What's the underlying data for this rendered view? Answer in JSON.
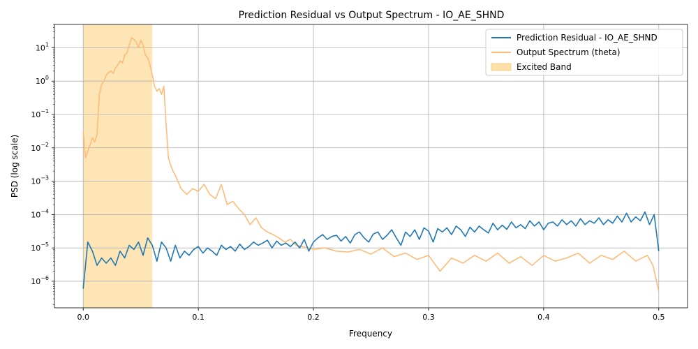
{
  "chart_data": {
    "type": "line",
    "title": "Prediction Residual vs Output Spectrum - IO_AE_SHND",
    "xlabel": "Frequency",
    "ylabel": "PSD (log scale)",
    "xlim": [
      -0.025,
      0.525
    ],
    "ylim": [
      1.6e-07,
      50
    ],
    "yscale": "log",
    "grid": true,
    "legend_position": "top-right",
    "x_ticks": [
      0.0,
      0.1,
      0.2,
      0.3,
      0.4,
      0.5
    ],
    "x_tick_labels": [
      "0.0",
      "0.1",
      "0.2",
      "0.3",
      "0.4",
      "0.5"
    ],
    "y_ticks": [
      1e-06,
      1e-05,
      0.0001,
      0.001,
      0.01,
      0.1,
      1,
      10
    ],
    "y_tick_bases": [
      "10",
      "10",
      "10",
      "10",
      "10",
      "10",
      "10",
      "10"
    ],
    "y_tick_exponents": [
      "−6",
      "−5",
      "−4",
      "−3",
      "−2",
      "−1",
      "0",
      "1"
    ],
    "band": {
      "name": "Excited Band",
      "x_start": 0.0,
      "x_end": 0.06,
      "color": "#fde0a8"
    },
    "series": [
      {
        "name": "Prediction Residual - IO_AE_SHND",
        "color": "#1f77b4",
        "x": [
          0.0,
          0.004,
          0.008,
          0.012,
          0.016,
          0.02,
          0.024,
          0.028,
          0.032,
          0.036,
          0.04,
          0.044,
          0.048,
          0.052,
          0.056,
          0.06,
          0.064,
          0.068,
          0.072,
          0.076,
          0.08,
          0.084,
          0.088,
          0.092,
          0.096,
          0.1,
          0.104,
          0.108,
          0.112,
          0.116,
          0.12,
          0.124,
          0.128,
          0.132,
          0.136,
          0.14,
          0.144,
          0.148,
          0.152,
          0.156,
          0.16,
          0.164,
          0.168,
          0.172,
          0.176,
          0.18,
          0.184,
          0.188,
          0.192,
          0.196,
          0.2,
          0.204,
          0.208,
          0.212,
          0.216,
          0.22,
          0.224,
          0.228,
          0.232,
          0.236,
          0.24,
          0.244,
          0.248,
          0.252,
          0.256,
          0.26,
          0.264,
          0.268,
          0.272,
          0.276,
          0.28,
          0.284,
          0.288,
          0.292,
          0.296,
          0.3,
          0.304,
          0.308,
          0.312,
          0.316,
          0.32,
          0.324,
          0.328,
          0.332,
          0.336,
          0.34,
          0.344,
          0.348,
          0.352,
          0.356,
          0.36,
          0.364,
          0.368,
          0.372,
          0.376,
          0.38,
          0.384,
          0.388,
          0.392,
          0.396,
          0.4,
          0.404,
          0.408,
          0.412,
          0.416,
          0.42,
          0.424,
          0.428,
          0.432,
          0.436,
          0.44,
          0.444,
          0.448,
          0.452,
          0.456,
          0.46,
          0.464,
          0.468,
          0.472,
          0.476,
          0.48,
          0.484,
          0.488,
          0.492,
          0.496,
          0.5
        ],
        "values": [
          6e-07,
          1.5e-05,
          8e-06,
          3e-06,
          5e-06,
          3.5e-06,
          5e-06,
          3e-06,
          8e-06,
          5e-06,
          1.2e-05,
          9e-06,
          1.5e-05,
          6e-06,
          2e-05,
          1.2e-05,
          4e-06,
          1.5e-05,
          1e-05,
          4e-06,
          1.2e-05,
          5e-06,
          8e-06,
          6e-06,
          9e-06,
          1.1e-05,
          7e-06,
          1e-05,
          8e-06,
          6e-06,
          1.2e-05,
          9e-06,
          1.1e-05,
          8e-06,
          1.3e-05,
          9e-06,
          1.1e-05,
          1.5e-05,
          1.2e-05,
          1.4e-05,
          1.7e-05,
          1e-05,
          1.6e-05,
          1.2e-05,
          1.4e-05,
          1.1e-05,
          1.5e-05,
          1e-05,
          1.8e-05,
          8e-06,
          1.5e-05,
          2e-05,
          2.5e-05,
          1.8e-05,
          2.2e-05,
          2.4e-05,
          1.6e-05,
          2.2e-05,
          1.4e-05,
          2.5e-05,
          3e-05,
          2e-05,
          1.5e-05,
          2.6e-05,
          3e-05,
          1.8e-05,
          2.4e-05,
          3.5e-05,
          2e-05,
          1.2e-05,
          3e-05,
          2.2e-05,
          3.5e-05,
          1.8e-05,
          4e-05,
          3.2e-05,
          1.5e-05,
          3.8e-05,
          3e-05,
          4e-05,
          2.5e-05,
          4.5e-05,
          3.5e-05,
          2.2e-05,
          4.2e-05,
          3e-05,
          4.5e-05,
          3.5e-05,
          2.8e-05,
          5.5e-05,
          3.5e-05,
          4.8e-05,
          3.6e-05,
          6e-05,
          4e-05,
          5e-05,
          3.8e-05,
          6.5e-05,
          4.5e-05,
          6e-05,
          3.5e-05,
          5.5e-05,
          6e-05,
          4.5e-05,
          7e-05,
          5e-05,
          6.5e-05,
          4.5e-05,
          7.5e-05,
          5e-05,
          6.5e-05,
          5.5e-05,
          8e-05,
          5e-05,
          7e-05,
          5.5e-05,
          9e-05,
          6e-05,
          0.00011,
          6e-05,
          8.5e-05,
          6.5e-05,
          0.00012,
          5e-05,
          0.0001,
          8e-06
        ]
      },
      {
        "name": "Output Spectrum (theta)",
        "color": "#ffbb78",
        "x": [
          0.0,
          0.002,
          0.004,
          0.006,
          0.008,
          0.01,
          0.012,
          0.014,
          0.016,
          0.018,
          0.02,
          0.022,
          0.024,
          0.026,
          0.028,
          0.03,
          0.032,
          0.034,
          0.036,
          0.038,
          0.04,
          0.042,
          0.044,
          0.046,
          0.048,
          0.05,
          0.052,
          0.054,
          0.056,
          0.058,
          0.06,
          0.062,
          0.064,
          0.066,
          0.068,
          0.07,
          0.072,
          0.074,
          0.076,
          0.078,
          0.08,
          0.085,
          0.09,
          0.095,
          0.1,
          0.105,
          0.11,
          0.115,
          0.12,
          0.125,
          0.13,
          0.135,
          0.14,
          0.145,
          0.15,
          0.155,
          0.16,
          0.165,
          0.17,
          0.175,
          0.18,
          0.185,
          0.19,
          0.195,
          0.2,
          0.21,
          0.22,
          0.23,
          0.24,
          0.25,
          0.26,
          0.27,
          0.28,
          0.29,
          0.3,
          0.31,
          0.32,
          0.33,
          0.34,
          0.35,
          0.36,
          0.37,
          0.38,
          0.39,
          0.4,
          0.41,
          0.42,
          0.43,
          0.44,
          0.45,
          0.46,
          0.47,
          0.48,
          0.49,
          0.495,
          0.5
        ],
        "values": [
          0.03,
          0.005,
          0.008,
          0.012,
          0.02,
          0.015,
          0.025,
          0.4,
          0.8,
          1.0,
          1.5,
          1.8,
          2.0,
          1.7,
          2.5,
          3.0,
          4.0,
          3.5,
          6.0,
          7.0,
          12.0,
          20.0,
          18.0,
          15.0,
          10.0,
          17.0,
          12.0,
          6.0,
          5.0,
          3.0,
          1.5,
          0.7,
          0.5,
          0.6,
          0.4,
          0.7,
          0.05,
          0.005,
          0.003,
          0.002,
          0.0015,
          0.0006,
          0.0004,
          0.0006,
          0.0005,
          0.0008,
          0.0004,
          0.0003,
          0.0008,
          0.0002,
          0.00025,
          0.00015,
          0.0001,
          5e-05,
          8e-05,
          4e-05,
          3e-05,
          2.5e-05,
          2e-05,
          1.5e-05,
          1.8e-05,
          1.2e-05,
          1.1e-05,
          1e-05,
          9e-06,
          1e-05,
          8e-06,
          7.5e-06,
          9e-06,
          6.5e-06,
          1e-05,
          5.5e-06,
          7e-06,
          4.5e-06,
          6e-06,
          2e-06,
          5e-06,
          3.5e-06,
          6e-06,
          4e-06,
          7e-06,
          3.5e-06,
          5.5e-06,
          3e-06,
          6e-06,
          4e-06,
          5e-06,
          7e-06,
          3.5e-06,
          6e-06,
          4.5e-06,
          8e-06,
          4e-06,
          6e-06,
          3e-06,
          5e-07
        ]
      }
    ]
  }
}
